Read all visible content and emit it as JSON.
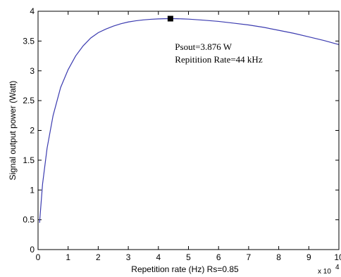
{
  "chart_data": {
    "type": "line",
    "xlabel": "Repetition rate (Hz)  Rs=0.85",
    "ylabel": "Signal output power (Watt)",
    "x_multiplier": "x 10",
    "x_multiplier_exp": "4",
    "xlim": [
      0,
      10
    ],
    "ylim": [
      0,
      4
    ],
    "x_ticks": [
      "0",
      "1",
      "2",
      "3",
      "4",
      "5",
      "6",
      "7",
      "8",
      "9",
      "10"
    ],
    "y_ticks": [
      "0",
      "0.5",
      "1",
      "1.5",
      "2",
      "2.5",
      "3",
      "3.5",
      "4"
    ],
    "grid": false,
    "series": [
      {
        "color": "#3b3bb0",
        "x": [
          0.05,
          0.15,
          0.3,
          0.5,
          0.75,
          1.0,
          1.25,
          1.5,
          1.75,
          2.0,
          2.25,
          2.5,
          2.75,
          3.0,
          3.25,
          3.5,
          3.75,
          4.0,
          4.2,
          4.4,
          4.6,
          4.8,
          5.0,
          5.5,
          6.0,
          6.5,
          7.0,
          7.5,
          8.0,
          8.5,
          9.0,
          9.5,
          10.0
        ],
        "y": [
          0.45,
          1.1,
          1.7,
          2.25,
          2.72,
          3.02,
          3.25,
          3.42,
          3.55,
          3.64,
          3.7,
          3.75,
          3.79,
          3.82,
          3.84,
          3.855,
          3.865,
          3.872,
          3.875,
          3.876,
          3.875,
          3.872,
          3.868,
          3.85,
          3.83,
          3.8,
          3.77,
          3.73,
          3.68,
          3.63,
          3.57,
          3.51,
          3.44
        ]
      }
    ],
    "marker": {
      "x": 4.4,
      "y": 3.876
    },
    "annotations": [
      "Psout=3.876 W",
      "Repitition Rate=44 kHz"
    ]
  }
}
